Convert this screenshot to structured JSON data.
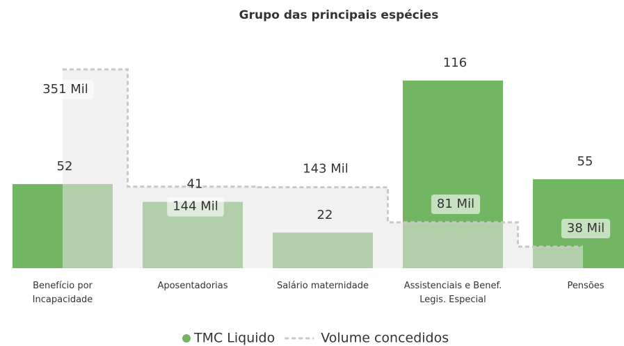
{
  "chart_data": {
    "type": "combo",
    "title": "Grupo das principais espécies",
    "categories": [
      "Benefício por Incapacidade",
      "Aposentadorias",
      "Salário maternidade",
      "Assistenciais e Benef. Legis. Especial",
      "Pensões"
    ],
    "series": [
      {
        "name": "TMC Liquido",
        "type": "bar",
        "color": "#72b562",
        "values": [
          52,
          41,
          22,
          116,
          55
        ]
      },
      {
        "name": "Volume concedidos",
        "type": "step-area",
        "axis": "y2",
        "color": "#c8c8c8",
        "values": [
          351000,
          144000,
          143000,
          81000,
          38000
        ],
        "value_labels": [
          "351 Mil",
          "144 Mil",
          "143 Mil",
          "81 Mil",
          "38 Mil"
        ]
      }
    ],
    "ylim": [
      0,
      140
    ],
    "y2lim": [
      0,
      400000
    ],
    "legend": "bottom"
  }
}
